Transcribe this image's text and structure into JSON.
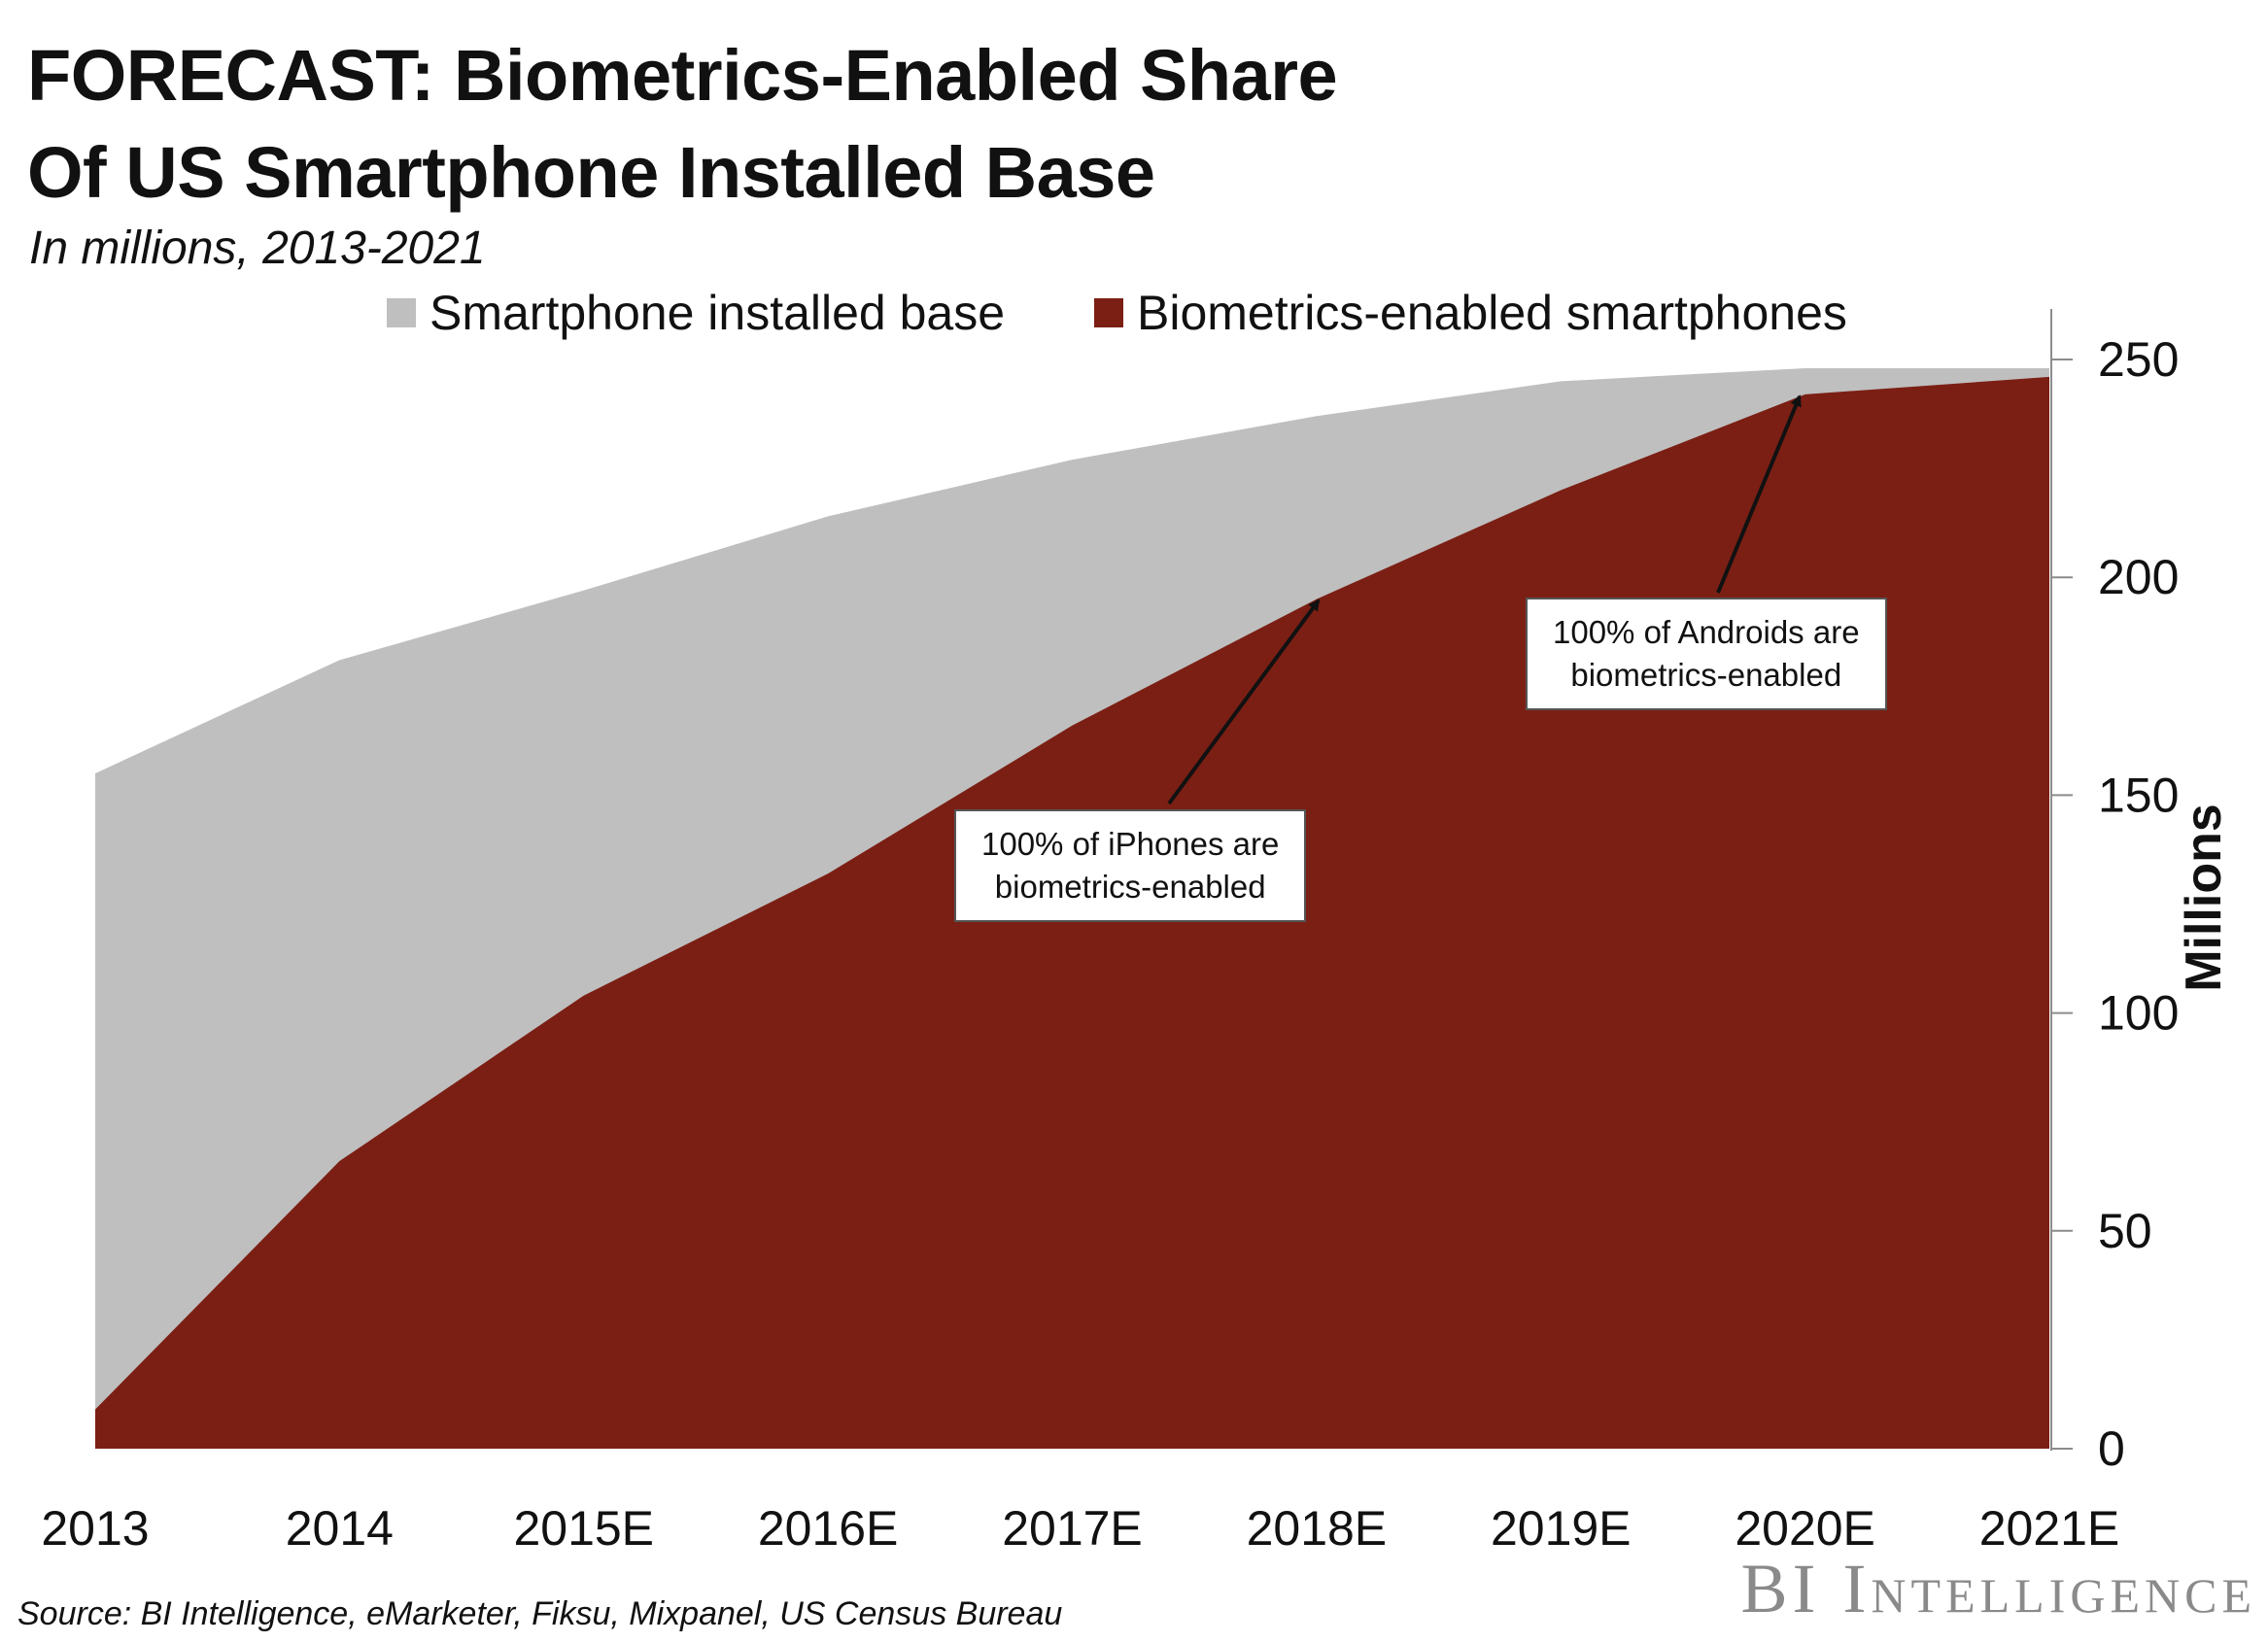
{
  "title_line1": "FORECAST: Biometrics-Enabled Share",
  "title_line2": "Of US Smartphone Installed Base",
  "subtitle": "In millions, 2013-2021",
  "source": "Source: BI Intelligence, eMarketer, Fiksu, Mixpanel, US Census Bureau",
  "brand": "BI Intelligence",
  "colors": {
    "installed_base": "#bfbfbf",
    "biometrics": "#7b1f14",
    "axis": "#8c8c8c"
  },
  "annotations": [
    {
      "line1": "100% of iPhones are",
      "line2": "biometrics-enabled",
      "points_to": "2018E"
    },
    {
      "line1": "100% of Androids are",
      "line2": "biometrics-enabled",
      "points_to": "2020E"
    }
  ],
  "chart_data": {
    "type": "area",
    "title": "FORECAST: Biometrics-Enabled Share Of US Smartphone Installed Base",
    "subtitle": "In millions, 2013-2021",
    "categories": [
      "2013",
      "2014",
      "2015E",
      "2016E",
      "2017E",
      "2018E",
      "2019E",
      "2020E",
      "2021E"
    ],
    "series": [
      {
        "name": "Smartphone installed base",
        "values": [
          155,
          181,
          197,
          214,
          227,
          237,
          245,
          248,
          248
        ]
      },
      {
        "name": "Biometrics-enabled smartphones",
        "values": [
          9,
          66,
          104,
          132,
          166,
          195,
          220,
          242,
          246
        ]
      }
    ],
    "ylabel": "Millions",
    "ylim": [
      0,
      250
    ],
    "yticks": [
      0,
      50,
      100,
      150,
      200,
      250
    ],
    "y_axis_side": "right",
    "grid": false,
    "legend_position": "top"
  }
}
